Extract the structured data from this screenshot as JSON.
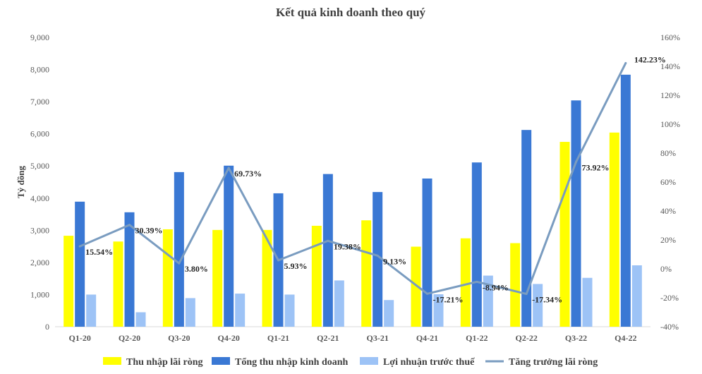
{
  "chart_data": {
    "type": "bar",
    "title": "Kết quả kinh doanh theo quý",
    "ylabel": "Tỷ đồng",
    "categories": [
      "Q1-20",
      "Q2-20",
      "Q3-20",
      "Q4-20",
      "Q1-21",
      "Q2-21",
      "Q3-21",
      "Q4-21",
      "Q1-22",
      "Q2-22",
      "Q3-22",
      "Q4-22"
    ],
    "ylim": [
      0,
      9000
    ],
    "y_ticks": [
      "0",
      "1,000",
      "2,000",
      "3,000",
      "4,000",
      "5,000",
      "6,000",
      "7,000",
      "8,000",
      "9,000"
    ],
    "y2lim": [
      -40,
      160
    ],
    "y2_ticks": [
      "-40%",
      "-20%",
      "0%",
      "20%",
      "40%",
      "60%",
      "80%",
      "100%",
      "120%",
      "140%",
      "160%"
    ],
    "series": [
      {
        "name": "Thu nhập lãi ròng",
        "kind": "bar",
        "color": "#FFFF00",
        "values": [
          2830,
          2650,
          3030,
          3010,
          3010,
          3140,
          3310,
          2490,
          2750,
          2600,
          5750,
          6040
        ]
      },
      {
        "name": "Tổng thu nhập kinh doanh",
        "kind": "bar",
        "color": "#3A78D4",
        "values": [
          3890,
          3560,
          4810,
          5010,
          4150,
          4750,
          4190,
          4610,
          5110,
          6120,
          7040,
          7840
        ]
      },
      {
        "name": "Lợi nhuận trước thuế",
        "kind": "bar",
        "color": "#9DC3F6",
        "values": [
          1000,
          450,
          890,
          1030,
          1000,
          1440,
          830,
          1010,
          1590,
          1330,
          1520,
          1910
        ]
      },
      {
        "name": "Tăng trưởng lãi ròng",
        "kind": "line",
        "axis": "secondary",
        "color": "#7A9CC0",
        "values": [
          15.54,
          30.39,
          3.8,
          69.73,
          5.93,
          19.38,
          9.13,
          -17.21,
          -8.94,
          -17.34,
          73.92,
          142.23
        ],
        "labels": [
          "15.54%",
          "30.39%",
          "3.80%",
          "69.73%",
          "5.93%",
          "19.38%",
          "9.13%",
          "-17.21%",
          "-8.94%",
          "-17.34%",
          "73.92%",
          "142.23%"
        ]
      }
    ],
    "grid": false,
    "legend": "bottom"
  }
}
